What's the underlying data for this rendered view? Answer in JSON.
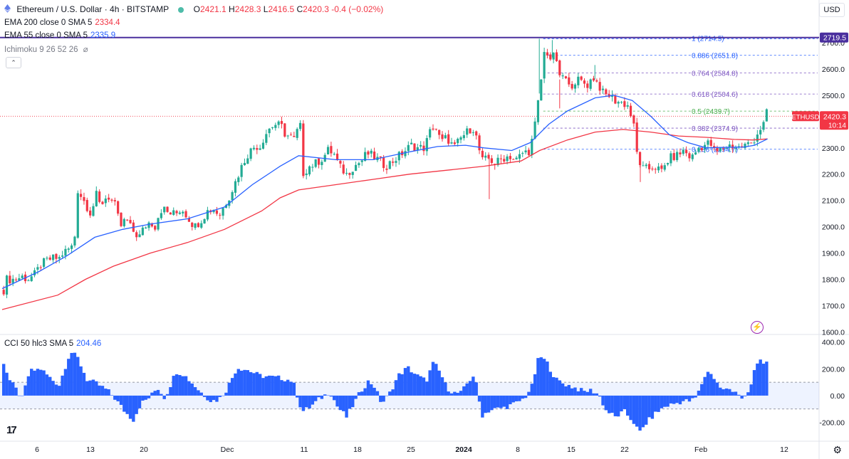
{
  "header": {
    "symbol": "Ethereum / U.S. Dollar · 4h · BITSTAMP",
    "open_label": "O",
    "open": "2421.1",
    "high_label": "H",
    "high": "2428.3",
    "low_label": "L",
    "low": "2416.5",
    "close_label": "C",
    "close": "2420.3",
    "change": "-0.4 (−0.02%)"
  },
  "indicators": {
    "ema200": {
      "label": "EMA 200 close 0 SMA 5",
      "value": "2334.4"
    },
    "ema55": {
      "label": "EMA 55 close 0 SMA 5",
      "value": "2335.9"
    },
    "ichimoku": {
      "label": "Ichimoku 9 26 52 26"
    },
    "cci": {
      "label": "CCI 50 hlc3 SMA 5",
      "value": "204.46"
    }
  },
  "currency": "USD",
  "colors": {
    "up": "#22ab94",
    "down": "#f23645",
    "ema55": "#2962ff",
    "ema200": "#f23645",
    "cci": "#2962ff",
    "resistance": "#4a2f9e"
  },
  "chart_data": {
    "type": "candlestick",
    "timeframe": "4h",
    "price_axis": {
      "ticks": [
        "2700.0",
        "2600.0",
        "2500.0",
        "2400.0",
        "2300.0",
        "2200.0",
        "2100.0",
        "2000.0",
        "1900.0",
        "1800.0",
        "1700.0",
        "1600.0"
      ],
      "ylim": [
        1585,
        2735
      ]
    },
    "x_axis": {
      "ticks": [
        "6",
        "13",
        "20",
        "Dec",
        "11",
        "18",
        "25",
        "2024",
        "8",
        "15",
        "22",
        "Feb",
        "12"
      ],
      "tick_positions": [
        52,
        127,
        202,
        319,
        427,
        502,
        577,
        651,
        727,
        802,
        877,
        984,
        1101
      ]
    },
    "price_path": [
      [
        0,
        1760
      ],
      [
        0.05,
        1780
      ],
      [
        0.1,
        1790
      ],
      [
        0.14,
        1800
      ],
      [
        0.3,
        1800
      ],
      [
        0.6,
        1800
      ],
      [
        1.0,
        1810
      ],
      [
        1.3,
        1800
      ],
      [
        1.7,
        1820
      ],
      [
        2.0,
        1855
      ],
      [
        2.3,
        1870
      ],
      [
        2.6,
        1880
      ],
      [
        3.0,
        1880
      ],
      [
        3.2,
        1900
      ],
      [
        3.8,
        1930
      ],
      [
        4.0,
        2140
      ],
      [
        4.4,
        2090
      ],
      [
        4.7,
        2050
      ],
      [
        5.0,
        2120
      ],
      [
        5.2,
        2080
      ],
      [
        5.6,
        2120
      ],
      [
        6.0,
        2080
      ],
      [
        6.3,
        2000
      ],
      [
        6.6,
        2030
      ],
      [
        6.9,
        1990
      ],
      [
        7.3,
        1960
      ],
      [
        7.6,
        2000
      ],
      [
        7.9,
        2020
      ],
      [
        8.2,
        2000
      ],
      [
        8.4,
        2060
      ],
      [
        8.6,
        2070
      ],
      [
        8.9,
        2050
      ],
      [
        9.3,
        2050
      ],
      [
        9.6,
        2070
      ],
      [
        10.0,
        2030
      ],
      [
        10.3,
        2000
      ],
      [
        10.7,
        2030
      ],
      [
        11.0,
        2060
      ],
      [
        11.4,
        2070
      ],
      [
        11.6,
        2040
      ],
      [
        11.9,
        2080
      ],
      [
        12.2,
        2120
      ],
      [
        12.5,
        2170
      ],
      [
        12.9,
        2240
      ],
      [
        13.2,
        2280
      ],
      [
        13.6,
        2310
      ],
      [
        13.8,
        2300
      ],
      [
        14.1,
        2350
      ],
      [
        14.4,
        2380
      ],
      [
        14.7,
        2390
      ],
      [
        15.0,
        2380
      ],
      [
        15.2,
        2350
      ],
      [
        15.5,
        2340
      ],
      [
        15.7,
        2330
      ],
      [
        15.9,
        2380
      ],
      [
        16.0,
        2380
      ],
      [
        16.1,
        2200
      ],
      [
        16.5,
        2230
      ],
      [
        16.8,
        2240
      ],
      [
        17.2,
        2260
      ],
      [
        17.5,
        2290
      ],
      [
        17.8,
        2280
      ],
      [
        18.1,
        2230
      ],
      [
        18.5,
        2200
      ],
      [
        18.9,
        2230
      ],
      [
        19.3,
        2250
      ],
      [
        19.6,
        2280
      ],
      [
        19.9,
        2270
      ],
      [
        20.3,
        2250
      ],
      [
        20.6,
        2230
      ],
      [
        21.0,
        2250
      ],
      [
        21.5,
        2280
      ],
      [
        22.0,
        2310
      ],
      [
        22.3,
        2300
      ],
      [
        22.7,
        2300
      ],
      [
        23.1,
        2380
      ],
      [
        23.3,
        2380
      ],
      [
        23.6,
        2320
      ],
      [
        23.9,
        2340
      ],
      [
        24.3,
        2300
      ],
      [
        24.7,
        2340
      ],
      [
        25.0,
        2360
      ],
      [
        25.3,
        2380
      ],
      [
        25.5,
        2340
      ],
      [
        25.8,
        2250
      ],
      [
        26.2,
        2260
      ],
      [
        26.5,
        2240
      ],
      [
        26.9,
        2260
      ],
      [
        27.3,
        2270
      ],
      [
        27.6,
        2250
      ],
      [
        28.0,
        2280
      ],
      [
        28.4,
        2290
      ],
      [
        28.7,
        2400
      ],
      [
        29.0,
        2560
      ],
      [
        29.2,
        2680
      ],
      [
        29.5,
        2640
      ],
      [
        29.8,
        2650
      ],
      [
        30.0,
        2560
      ],
      [
        30.2,
        2580
      ],
      [
        30.5,
        2530
      ],
      [
        30.9,
        2560
      ],
      [
        31.2,
        2550
      ],
      [
        31.5,
        2540
      ],
      [
        31.8,
        2570
      ],
      [
        32.1,
        2540
      ],
      [
        32.4,
        2500
      ],
      [
        32.7,
        2500
      ],
      [
        33.0,
        2480
      ],
      [
        33.4,
        2470
      ],
      [
        33.7,
        2460
      ],
      [
        34.0,
        2380
      ],
      [
        34.2,
        2260
      ],
      [
        34.5,
        2220
      ],
      [
        34.8,
        2220
      ],
      [
        35.1,
        2230
      ],
      [
        35.5,
        2210
      ],
      [
        35.9,
        2260
      ],
      [
        36.3,
        2270
      ],
      [
        36.7,
        2290
      ],
      [
        37.1,
        2260
      ],
      [
        37.5,
        2300
      ],
      [
        37.8,
        2310
      ],
      [
        38.1,
        2320
      ],
      [
        38.4,
        2280
      ],
      [
        38.8,
        2300
      ],
      [
        39.2,
        2310
      ],
      [
        39.6,
        2300
      ],
      [
        40.0,
        2310
      ],
      [
        40.4,
        2320
      ],
      [
        40.7,
        2360
      ],
      [
        41.0,
        2390
      ],
      [
        41.2,
        2440
      ],
      [
        41.35,
        2420
      ]
    ],
    "spikes": [
      [
        26.2,
        2105,
        "low"
      ],
      [
        28.9,
        2715,
        "high"
      ],
      [
        29.6,
        2710,
        "high"
      ],
      [
        31.9,
        2615,
        "high"
      ],
      [
        34.35,
        2170,
        "low"
      ],
      [
        30.0,
        2450,
        "low"
      ]
    ],
    "ema55_path": [
      [
        0,
        1765
      ],
      [
        2,
        1830
      ],
      [
        3.5,
        1890
      ],
      [
        5,
        1960
      ],
      [
        6.5,
        1990
      ],
      [
        8,
        2010
      ],
      [
        10,
        2030
      ],
      [
        12,
        2075
      ],
      [
        13.5,
        2160
      ],
      [
        15,
        2230
      ],
      [
        16,
        2270
      ],
      [
        18,
        2255
      ],
      [
        20,
        2255
      ],
      [
        22,
        2285
      ],
      [
        23.5,
        2305
      ],
      [
        25,
        2310
      ],
      [
        26,
        2300
      ],
      [
        27.5,
        2290
      ],
      [
        28.5,
        2320
      ],
      [
        29.5,
        2390
      ],
      [
        30.5,
        2440
      ],
      [
        32,
        2490
      ],
      [
        33,
        2500
      ],
      [
        34,
        2480
      ],
      [
        35,
        2420
      ],
      [
        36,
        2350
      ],
      [
        37,
        2320
      ],
      [
        38,
        2300
      ],
      [
        39,
        2302
      ],
      [
        40,
        2303
      ],
      [
        40.6,
        2310
      ],
      [
        41.3,
        2334
      ]
    ],
    "ema200_path": [
      [
        0,
        1685
      ],
      [
        3,
        1740
      ],
      [
        4.5,
        1800
      ],
      [
        6,
        1850
      ],
      [
        8,
        1900
      ],
      [
        10,
        1940
      ],
      [
        12,
        1990
      ],
      [
        14,
        2060
      ],
      [
        15,
        2110
      ],
      [
        16,
        2140
      ],
      [
        18,
        2160
      ],
      [
        20,
        2180
      ],
      [
        22,
        2200
      ],
      [
        24,
        2215
      ],
      [
        26,
        2230
      ],
      [
        28,
        2250
      ],
      [
        29,
        2290
      ],
      [
        30.5,
        2330
      ],
      [
        32,
        2360
      ],
      [
        33.5,
        2370
      ],
      [
        35,
        2360
      ],
      [
        36.5,
        2345
      ],
      [
        38,
        2340
      ],
      [
        39.5,
        2332
      ],
      [
        40.5,
        2330
      ],
      [
        41.3,
        2334
      ]
    ],
    "resistance": {
      "price": 2719.5,
      "label": "2719.5"
    },
    "current_price": {
      "symbol": "ETHUSD",
      "price": 2420.3,
      "countdown": "10:14"
    },
    "fibonacci": [
      {
        "level": "1",
        "price": 2714.5
      },
      {
        "level": "0.886",
        "price": 2651.8
      },
      {
        "level": "0.764",
        "price": 2584.8
      },
      {
        "level": "0.618",
        "price": 2504.6
      },
      {
        "level": "0.5",
        "price": 2439.7
      },
      {
        "level": "0.382",
        "price": 2374.9
      },
      {
        "level": "0.236",
        "price": 2294.7
      }
    ],
    "fib_labels": [
      "1 (2714.5)",
      "0.886 (2651.8)",
      "0.764 (2584.8)",
      "0.618 (2504.6)",
      "0.5 (2439.7)",
      "0.382 (2374.9)",
      "0.236 (2294.7)"
    ],
    "cci": {
      "ticks": [
        "400.00",
        "200.00",
        "0.00",
        "-200.00"
      ],
      "ylim": [
        -330,
        430
      ],
      "band": [
        100,
        -100
      ],
      "path": [
        [
          0,
          250
        ],
        [
          0.3,
          120
        ],
        [
          0.6,
          60
        ],
        [
          1.0,
          -20
        ],
        [
          1.4,
          180
        ],
        [
          2,
          200
        ],
        [
          2.6,
          120
        ],
        [
          3.0,
          80
        ],
        [
          3.6,
          330
        ],
        [
          4.0,
          280
        ],
        [
          4.5,
          120
        ],
        [
          5.0,
          90
        ],
        [
          5.6,
          40
        ],
        [
          6.0,
          -20
        ],
        [
          6.6,
          -130
        ],
        [
          7.0,
          -180
        ],
        [
          7.4,
          -60
        ],
        [
          7.9,
          -10
        ],
        [
          8.3,
          60
        ],
        [
          8.7,
          -20
        ],
        [
          9.3,
          180
        ],
        [
          9.7,
          160
        ],
        [
          10.2,
          90
        ],
        [
          10.6,
          30
        ],
        [
          11.2,
          -40
        ],
        [
          11.6,
          -30
        ],
        [
          12.0,
          40
        ],
        [
          12.6,
          210
        ],
        [
          13.2,
          190
        ],
        [
          13.8,
          150
        ],
        [
          14.3,
          140
        ],
        [
          15.0,
          130
        ],
        [
          15.6,
          110
        ],
        [
          16.1,
          -120
        ],
        [
          16.5,
          -90
        ],
        [
          17.0,
          -30
        ],
        [
          17.6,
          30
        ],
        [
          18.0,
          -80
        ],
        [
          18.5,
          -160
        ],
        [
          18.9,
          -60
        ],
        [
          19.3,
          40
        ],
        [
          19.7,
          110
        ],
        [
          20.0,
          70
        ],
        [
          20.4,
          -60
        ],
        [
          20.8,
          10
        ],
        [
          21.3,
          150
        ],
        [
          21.8,
          210
        ],
        [
          22.3,
          150
        ],
        [
          22.8,
          110
        ],
        [
          23.2,
          250
        ],
        [
          23.6,
          160
        ],
        [
          23.9,
          60
        ],
        [
          24.3,
          20
        ],
        [
          24.7,
          20
        ],
        [
          25.0,
          90
        ],
        [
          25.4,
          160
        ],
        [
          25.8,
          -150
        ],
        [
          26.2,
          -110
        ],
        [
          26.6,
          -100
        ],
        [
          27.0,
          -90
        ],
        [
          27.6,
          -60
        ],
        [
          28.1,
          -20
        ],
        [
          28.5,
          70
        ],
        [
          28.9,
          300
        ],
        [
          29.3,
          250
        ],
        [
          29.8,
          120
        ],
        [
          30.2,
          90
        ],
        [
          30.8,
          60
        ],
        [
          31.3,
          30
        ],
        [
          31.7,
          40
        ],
        [
          32.1,
          10
        ],
        [
          32.5,
          -110
        ],
        [
          33.0,
          -160
        ],
        [
          33.5,
          -120
        ],
        [
          34.0,
          -200
        ],
        [
          34.3,
          -280
        ],
        [
          34.7,
          -200
        ],
        [
          35.2,
          -130
        ],
        [
          35.7,
          -80
        ],
        [
          36.2,
          -60
        ],
        [
          36.7,
          -40
        ],
        [
          37.1,
          -40
        ],
        [
          37.4,
          -10
        ],
        [
          37.8,
          140
        ],
        [
          38.1,
          190
        ],
        [
          38.4,
          110
        ],
        [
          38.8,
          40
        ],
        [
          39.2,
          50
        ],
        [
          39.6,
          30
        ],
        [
          39.9,
          -50
        ],
        [
          40.3,
          60
        ],
        [
          40.6,
          240
        ],
        [
          40.9,
          270
        ],
        [
          41.2,
          230
        ],
        [
          41.35,
          204
        ]
      ]
    }
  }
}
